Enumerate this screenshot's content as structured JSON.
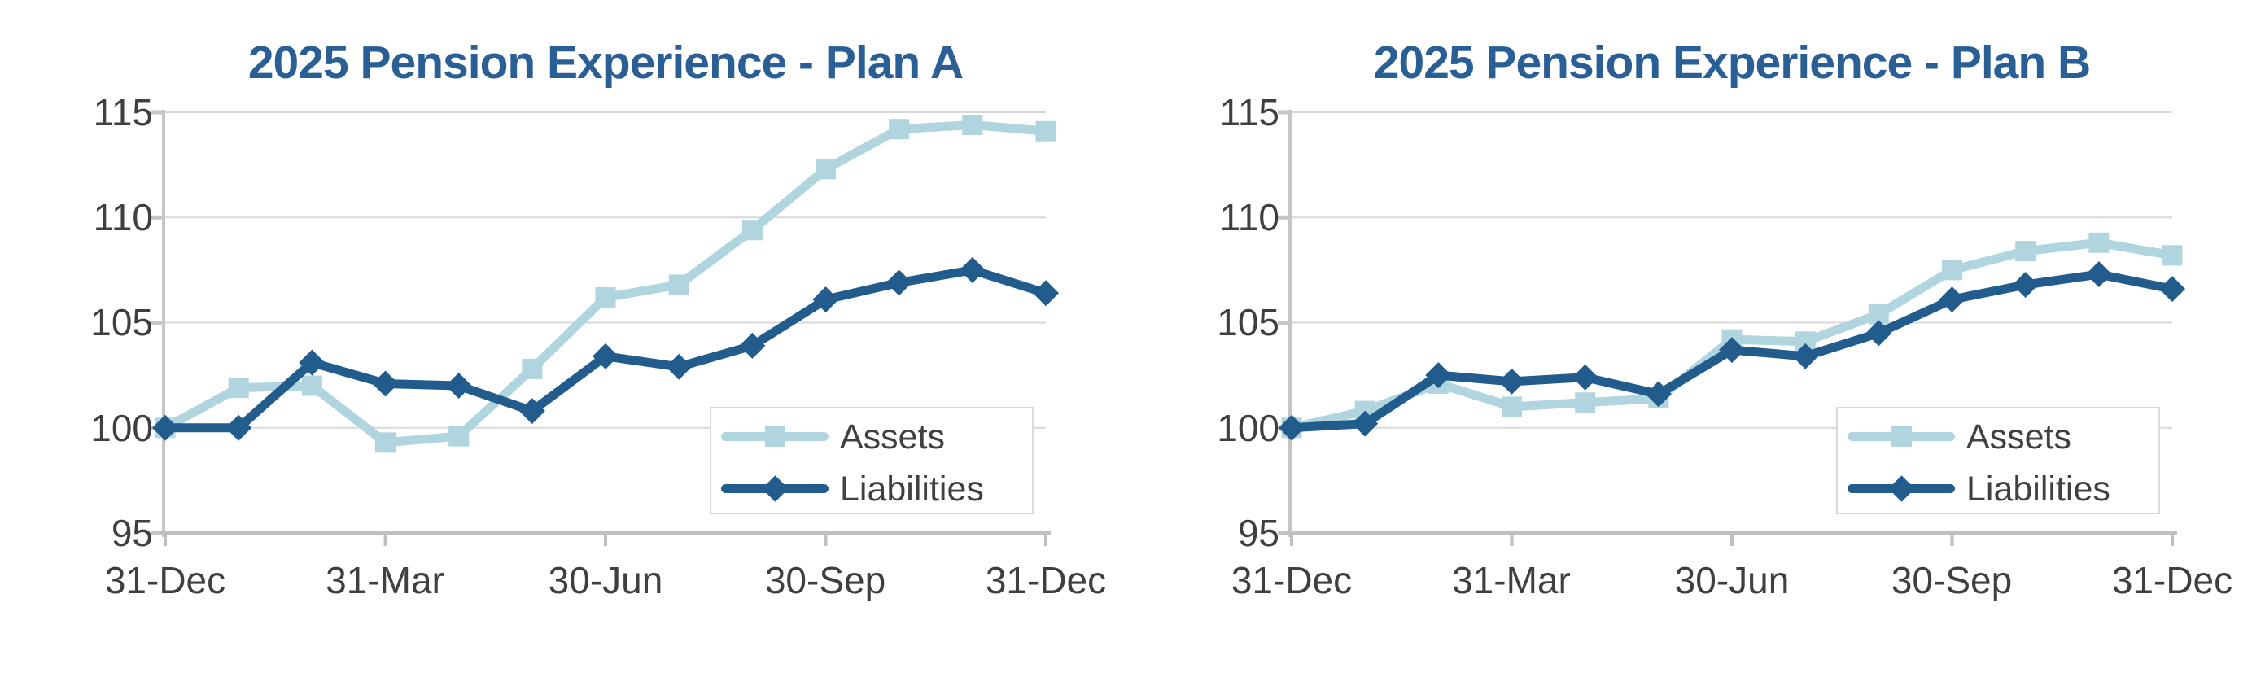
{
  "page": {
    "background": "#FFFFFF",
    "description_visible_elements": "two line charts side by side"
  },
  "colors": {
    "title_text": "#2A5F96",
    "assets_series": "#B0D5DE",
    "liabilities_series": "#215C8D",
    "axis_text": "#3F3F3F",
    "legend_text": "#404040",
    "gridline": "#D9D9D9",
    "y_axis_line": "#C6C6C6",
    "x_axis_line": "#BFBFBF",
    "legend_border": "#D9D9D9",
    "legend_fill": "#FFFFFF"
  },
  "chart_data": [
    {
      "type": "line",
      "title": "2025 Pension Experience - Plan A",
      "n_points": 13,
      "x_tick_labels": [
        "31-Dec",
        "31-Mar",
        "30-Jun",
        "30-Sep",
        "31-Dec"
      ],
      "x_tick_indices": [
        0,
        3,
        6,
        9,
        12
      ],
      "ylim": [
        95,
        115
      ],
      "y_ticks": [
        115,
        110,
        105,
        100,
        95
      ],
      "y_tick_labels": [
        "115",
        "110",
        "105",
        "100",
        "95"
      ],
      "grid": true,
      "legend_position": "inside-lower-right",
      "series": [
        {
          "name": "Assets",
          "marker": "square",
          "color": "#B0D5DE",
          "values": [
            100.0,
            101.9,
            102.0,
            99.3,
            99.6,
            102.8,
            106.2,
            106.8,
            109.4,
            112.3,
            114.2,
            114.4,
            114.1
          ]
        },
        {
          "name": "Liabilities",
          "marker": "diamond",
          "color": "#215C8D",
          "values": [
            100.0,
            100.0,
            103.1,
            102.1,
            102.0,
            100.8,
            103.4,
            102.9,
            103.9,
            106.1,
            106.9,
            107.5,
            106.4
          ]
        }
      ]
    },
    {
      "type": "line",
      "title": "2025 Pension Experience - Plan B",
      "n_points": 13,
      "x_tick_labels": [
        "31-Dec",
        "31-Mar",
        "30-Jun",
        "30-Sep",
        "31-Dec"
      ],
      "x_tick_indices": [
        0,
        3,
        6,
        9,
        12
      ],
      "ylim": [
        95,
        115
      ],
      "y_ticks": [
        115,
        110,
        105,
        100,
        95
      ],
      "y_tick_labels": [
        "115",
        "110",
        "105",
        "100",
        "95"
      ],
      "grid": true,
      "legend_position": "inside-lower-right",
      "series": [
        {
          "name": "Assets",
          "marker": "square",
          "color": "#B0D5DE",
          "values": [
            100.0,
            100.8,
            102.1,
            101.0,
            101.2,
            101.4,
            104.2,
            104.1,
            105.4,
            107.5,
            108.4,
            108.8,
            108.2
          ]
        },
        {
          "name": "Liabilities",
          "marker": "diamond",
          "color": "#215C8D",
          "values": [
            100.0,
            100.2,
            102.5,
            102.2,
            102.4,
            101.6,
            103.7,
            103.4,
            104.5,
            106.1,
            106.8,
            107.3,
            106.6
          ]
        }
      ]
    }
  ]
}
